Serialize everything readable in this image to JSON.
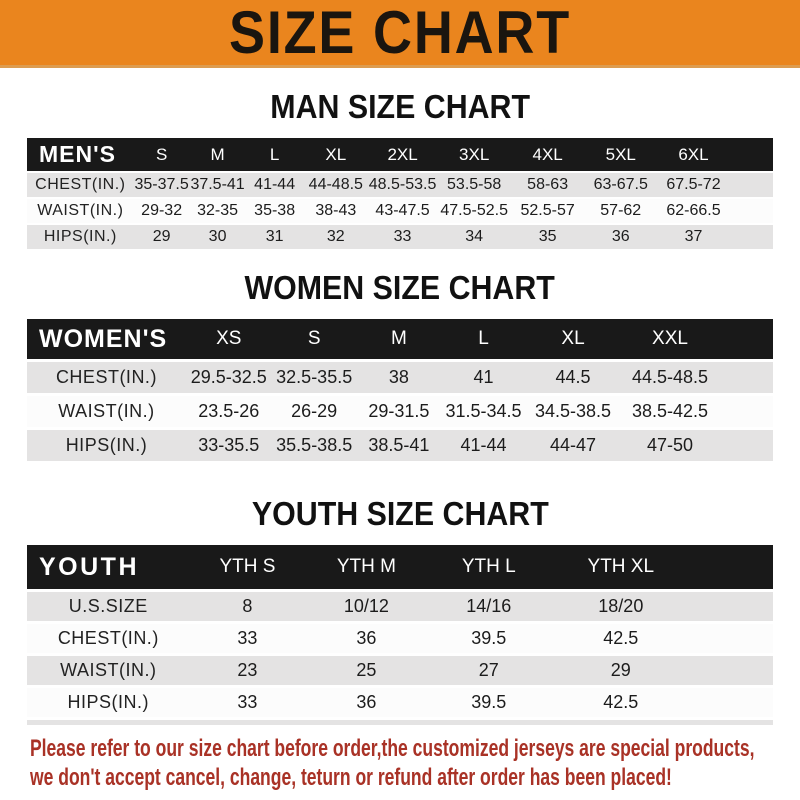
{
  "banner": {
    "title": "SIZE CHART"
  },
  "colors": {
    "banner_orange": "#EA851E",
    "header_black": "#191919",
    "row_gray": "#E4E3E3",
    "row_white": "#FCFCFC",
    "footer_red": "#A93226"
  },
  "sections": [
    {
      "id": "men",
      "heading": "MAN SIZE CHART",
      "table": {
        "corner": "MEN'S",
        "columns": [
          "S",
          "M",
          "L",
          "XL",
          "2XL",
          "3XL",
          "4XL",
          "5XL",
          "6XL"
        ],
        "rows": [
          {
            "label": "CHEST(IN.)",
            "values": [
              "35-37.5",
              "37.5-41",
              "41-44",
              "44-48.5",
              "48.5-53.5",
              "53.5-58",
              "58-63",
              "63-67.5",
              "67.5-72"
            ]
          },
          {
            "label": "WAIST(IN.)",
            "values": [
              "29-32",
              "32-35",
              "35-38",
              "38-43",
              "43-47.5",
              "47.5-52.5",
              "52.5-57",
              "57-62",
              "62-66.5"
            ]
          },
          {
            "label": "HIPS(IN.)",
            "values": [
              "29",
              "30",
              "31",
              "32",
              "33",
              "34",
              "35",
              "36",
              "37"
            ]
          }
        ]
      }
    },
    {
      "id": "women",
      "heading": "WOMEN SIZE CHART",
      "table": {
        "corner": "WOMEN'S",
        "columns": [
          "XS",
          "S",
          "M",
          "L",
          "XL",
          "XXL"
        ],
        "rows": [
          {
            "label": "CHEST(IN.)",
            "values": [
              "29.5-32.5",
              "32.5-35.5",
              "38",
              "41",
              "44.5",
              "44.5-48.5"
            ]
          },
          {
            "label": "WAIST(IN.)",
            "values": [
              "23.5-26",
              "26-29",
              "29-31.5",
              "31.5-34.5",
              "34.5-38.5",
              "38.5-42.5"
            ]
          },
          {
            "label": "HIPS(IN.)",
            "values": [
              "33-35.5",
              "35.5-38.5",
              "38.5-41",
              "41-44",
              "44-47",
              "47-50"
            ]
          }
        ]
      }
    },
    {
      "id": "youth",
      "heading": "YOUTH SIZE CHART",
      "table": {
        "corner": "YOUTH",
        "columns": [
          "YTH S",
          "YTH M",
          "YTH L",
          "YTH XL"
        ],
        "rows": [
          {
            "label": "U.S.SIZE",
            "values": [
              "8",
              "10/12",
              "14/16",
              "18/20"
            ]
          },
          {
            "label": "CHEST(IN.)",
            "values": [
              "33",
              "36",
              "39.5",
              "42.5"
            ]
          },
          {
            "label": "WAIST(IN.)",
            "values": [
              "23",
              "25",
              "27",
              "29"
            ]
          },
          {
            "label": "HIPS(IN.)",
            "values": [
              "33",
              "36",
              "39.5",
              "42.5"
            ]
          }
        ]
      }
    }
  ],
  "footer": {
    "line1": "Please refer to our size chart before order,the customized jerseys are special products,",
    "line2": "we don't accept cancel, change, teturn or refund after order has been placed!"
  }
}
